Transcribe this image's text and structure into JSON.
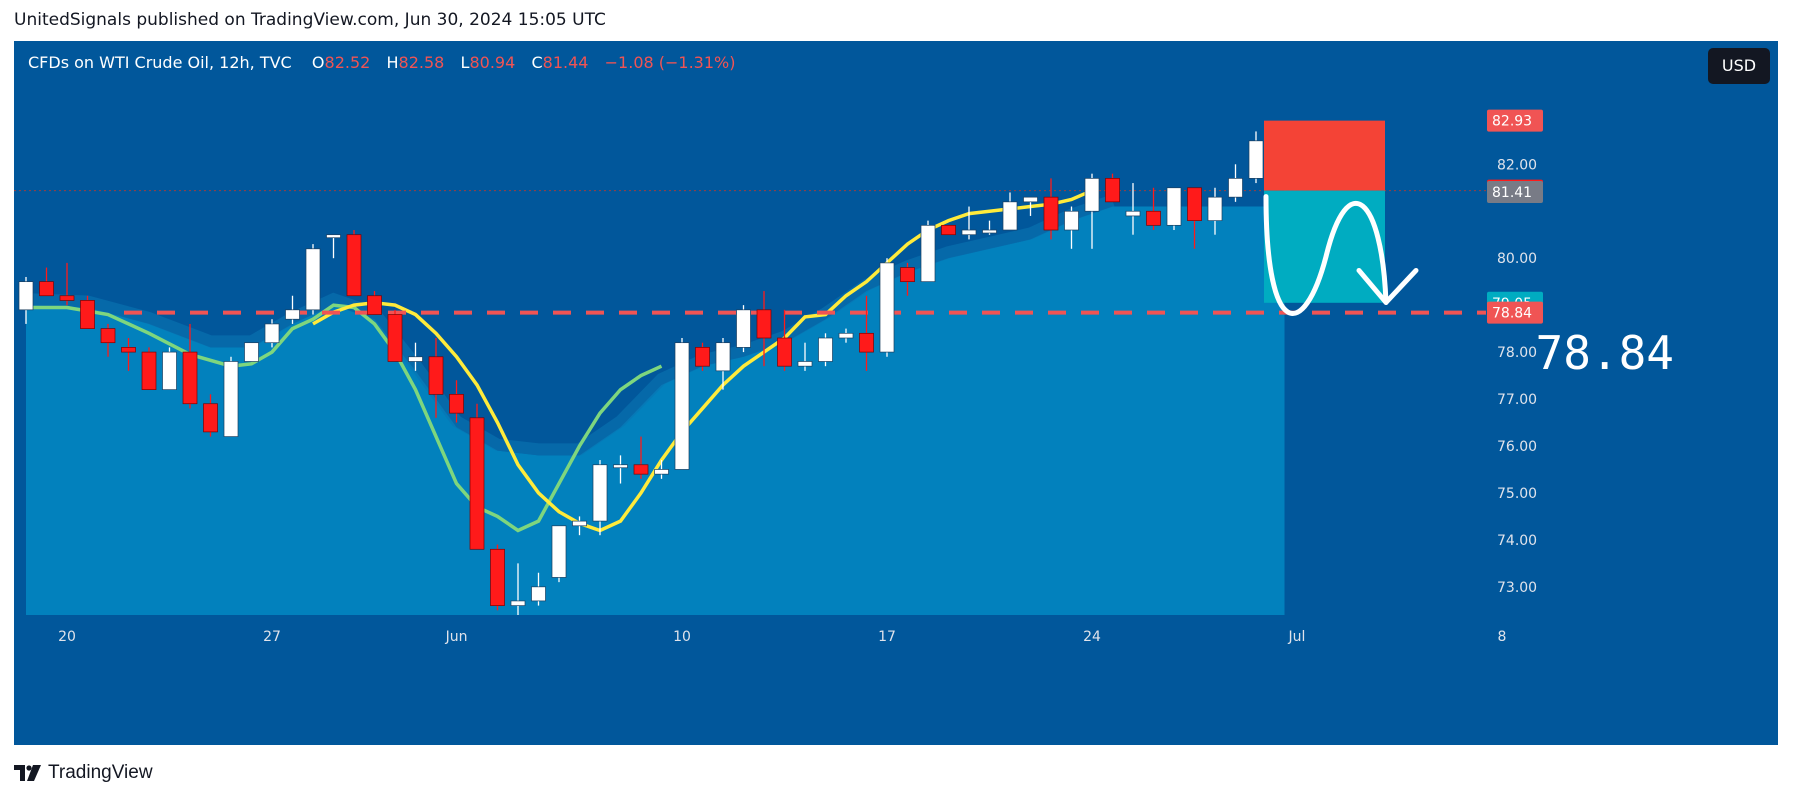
{
  "header": {
    "publish_text": "UnitedSignals published on TradingView.com, Jun 30, 2024 15:05 UTC"
  },
  "legend": {
    "symbol": "CFDs on WTI Crude Oil, 12h, TVC",
    "o_label": "O",
    "o_val": "82.52",
    "h_label": "H",
    "h_val": "82.58",
    "l_label": "L",
    "l_val": "80.94",
    "c_label": "C",
    "c_val": "81.44",
    "change": "−1.08 (−1.31%)"
  },
  "currency": "USD",
  "footer": {
    "brand": "TradingView"
  },
  "colors": {
    "background": "#01579b",
    "shade": "#0288c3",
    "candle_up": "#ffffff",
    "candle_down": "#ff1a1a",
    "ma_yellow": "#ffeb3b",
    "ma_green": "#7ed67e",
    "stop_zone": "#f44336",
    "target_zone": "#00acc1",
    "level_line": "#f05454"
  },
  "chart_data": {
    "type": "candlestick",
    "timeframe": "12h",
    "ylim": [
      72.4,
      84.2
    ],
    "y_ticks": [
      "82.00",
      "80.00",
      "79.00",
      "78.00",
      "77.00",
      "76.00",
      "75.00",
      "74.00",
      "73.00"
    ],
    "y_ticks_values": [
      82,
      80,
      79,
      78,
      77,
      76,
      75,
      74,
      73
    ],
    "x_ticks": [
      {
        "label": "20",
        "bar": 2
      },
      {
        "label": "27",
        "bar": 12
      },
      {
        "label": "Jun",
        "bar": 21
      },
      {
        "label": "10",
        "bar": 32
      },
      {
        "label": "17",
        "bar": 42
      },
      {
        "label": "24",
        "bar": 52
      },
      {
        "label": "Jul",
        "bar": 62
      },
      {
        "label": "8",
        "bar": 72
      }
    ],
    "candles": [
      [
        78.9,
        79.6,
        78.6,
        79.5
      ],
      [
        79.5,
        79.8,
        79.2,
        79.2
      ],
      [
        79.2,
        79.9,
        79.0,
        79.1
      ],
      [
        79.1,
        79.2,
        78.5,
        78.5
      ],
      [
        78.5,
        78.6,
        77.9,
        78.2
      ],
      [
        78.1,
        78.3,
        77.6,
        78.0
      ],
      [
        78.0,
        78.1,
        77.2,
        77.2
      ],
      [
        77.2,
        78.1,
        77.2,
        78.0
      ],
      [
        78.0,
        78.6,
        76.8,
        76.9
      ],
      [
        76.9,
        77.1,
        76.2,
        76.3
      ],
      [
        76.2,
        77.9,
        76.2,
        77.8
      ],
      [
        77.8,
        78.2,
        77.8,
        78.2
      ],
      [
        78.2,
        78.7,
        78.1,
        78.6
      ],
      [
        78.7,
        79.2,
        78.6,
        78.9
      ],
      [
        78.9,
        80.3,
        78.8,
        80.2
      ],
      [
        80.5,
        80.5,
        80.0,
        80.5
      ],
      [
        80.5,
        80.6,
        79.2,
        79.2
      ],
      [
        79.2,
        79.3,
        78.8,
        78.8
      ],
      [
        78.8,
        78.9,
        77.8,
        77.8
      ],
      [
        77.8,
        78.2,
        77.6,
        77.9
      ],
      [
        77.9,
        78.3,
        76.6,
        77.1
      ],
      [
        77.1,
        77.4,
        76.5,
        76.7
      ],
      [
        76.6,
        76.9,
        73.8,
        73.8
      ],
      [
        73.8,
        73.9,
        72.5,
        72.6
      ],
      [
        72.6,
        73.5,
        72.4,
        72.7
      ],
      [
        72.7,
        73.3,
        72.6,
        73.0
      ],
      [
        73.2,
        74.3,
        73.1,
        74.3
      ],
      [
        74.3,
        74.5,
        74.1,
        74.4
      ],
      [
        74.4,
        75.7,
        74.1,
        75.6
      ],
      [
        75.6,
        75.8,
        75.2,
        75.6
      ],
      [
        75.6,
        76.2,
        75.3,
        75.4
      ],
      [
        75.4,
        75.7,
        75.3,
        75.5
      ],
      [
        75.5,
        78.3,
        75.5,
        78.2
      ],
      [
        78.1,
        78.2,
        77.6,
        77.7
      ],
      [
        77.6,
        78.3,
        77.2,
        78.2
      ],
      [
        78.1,
        79.0,
        78.0,
        78.9
      ],
      [
        78.9,
        79.3,
        77.7,
        78.3
      ],
      [
        78.3,
        78.9,
        77.6,
        77.7
      ],
      [
        77.7,
        78.2,
        77.6,
        77.8
      ],
      [
        77.8,
        78.4,
        77.7,
        78.3
      ],
      [
        78.3,
        78.5,
        78.2,
        78.4
      ],
      [
        78.4,
        79.2,
        77.6,
        78.0
      ],
      [
        78.0,
        80.0,
        77.9,
        79.9
      ],
      [
        79.8,
        79.9,
        79.2,
        79.5
      ],
      [
        79.5,
        80.8,
        79.5,
        80.7
      ],
      [
        80.7,
        80.7,
        80.5,
        80.5
      ],
      [
        80.5,
        81.1,
        80.4,
        80.6
      ],
      [
        80.6,
        80.8,
        80.5,
        80.6
      ],
      [
        80.6,
        81.4,
        80.6,
        81.2
      ],
      [
        81.2,
        81.3,
        80.9,
        81.3
      ],
      [
        81.3,
        81.7,
        80.4,
        80.6
      ],
      [
        80.6,
        81.1,
        80.2,
        81.0
      ],
      [
        81.0,
        81.8,
        80.2,
        81.7
      ],
      [
        81.7,
        81.8,
        81.2,
        81.2
      ],
      [
        80.9,
        81.6,
        80.5,
        81.0
      ],
      [
        81.0,
        81.5,
        80.6,
        80.7
      ],
      [
        80.7,
        81.5,
        80.6,
        81.5
      ],
      [
        81.5,
        81.5,
        80.2,
        80.8
      ],
      [
        80.8,
        81.5,
        80.5,
        81.3
      ],
      [
        81.3,
        82.0,
        81.2,
        81.7
      ],
      [
        81.7,
        82.7,
        81.6,
        82.5
      ],
      [
        82.52,
        82.58,
        80.94,
        81.44
      ]
    ],
    "ma_yellow": [
      {
        "bar": 14,
        "value": 78.6
      },
      {
        "bar": 15,
        "value": 78.85
      },
      {
        "bar": 16,
        "value": 79.0
      },
      {
        "bar": 17,
        "value": 79.05
      },
      {
        "bar": 18,
        "value": 79.0
      },
      {
        "bar": 19,
        "value": 78.8
      },
      {
        "bar": 20,
        "value": 78.4
      },
      {
        "bar": 21,
        "value": 77.9
      },
      {
        "bar": 22,
        "value": 77.3
      },
      {
        "bar": 23,
        "value": 76.5
      },
      {
        "bar": 24,
        "value": 75.6
      },
      {
        "bar": 25,
        "value": 75.0
      },
      {
        "bar": 26,
        "value": 74.6
      },
      {
        "bar": 27,
        "value": 74.35
      },
      {
        "bar": 28,
        "value": 74.2
      },
      {
        "bar": 29,
        "value": 74.4
      },
      {
        "bar": 30,
        "value": 75.0
      },
      {
        "bar": 31,
        "value": 75.7
      },
      {
        "bar": 32,
        "value": 76.3
      },
      {
        "bar": 33,
        "value": 76.8
      },
      {
        "bar": 34,
        "value": 77.3
      },
      {
        "bar": 35,
        "value": 77.7
      },
      {
        "bar": 36,
        "value": 78.0
      },
      {
        "bar": 37,
        "value": 78.3
      },
      {
        "bar": 38,
        "value": 78.75
      },
      {
        "bar": 39,
        "value": 78.8
      },
      {
        "bar": 40,
        "value": 79.2
      },
      {
        "bar": 41,
        "value": 79.5
      },
      {
        "bar": 42,
        "value": 79.9
      },
      {
        "bar": 43,
        "value": 80.3
      },
      {
        "bar": 44,
        "value": 80.6
      },
      {
        "bar": 45,
        "value": 80.8
      },
      {
        "bar": 46,
        "value": 80.95
      },
      {
        "bar": 47,
        "value": 81.0
      },
      {
        "bar": 48,
        "value": 81.05
      },
      {
        "bar": 49,
        "value": 81.1
      },
      {
        "bar": 50,
        "value": 81.15
      },
      {
        "bar": 51,
        "value": 81.25
      },
      {
        "bar": 52,
        "value": 81.44
      }
    ],
    "ma_green": [
      {
        "bar": 0,
        "value": 78.95
      },
      {
        "bar": 2,
        "value": 78.95
      },
      {
        "bar": 4,
        "value": 78.8
      },
      {
        "bar": 6,
        "value": 78.4
      },
      {
        "bar": 8,
        "value": 77.95
      },
      {
        "bar": 10,
        "value": 77.7
      },
      {
        "bar": 11,
        "value": 77.75
      },
      {
        "bar": 12,
        "value": 78.0
      },
      {
        "bar": 13,
        "value": 78.5
      },
      {
        "bar": 14,
        "value": 78.7
      },
      {
        "bar": 15,
        "value": 79.0
      },
      {
        "bar": 16,
        "value": 78.95
      },
      {
        "bar": 17,
        "value": 78.6
      },
      {
        "bar": 18,
        "value": 78.0
      },
      {
        "bar": 19,
        "value": 77.2
      },
      {
        "bar": 20,
        "value": 76.2
      },
      {
        "bar": 21,
        "value": 75.2
      },
      {
        "bar": 22,
        "value": 74.7
      },
      {
        "bar": 23,
        "value": 74.5
      },
      {
        "bar": 24,
        "value": 74.2
      },
      {
        "bar": 25,
        "value": 74.4
      },
      {
        "bar": 26,
        "value": 75.2
      },
      {
        "bar": 27,
        "value": 76.0
      },
      {
        "bar": 28,
        "value": 76.7
      },
      {
        "bar": 29,
        "value": 77.2
      },
      {
        "bar": 30,
        "value": 77.5
      },
      {
        "bar": 31,
        "value": 77.7
      }
    ],
    "shade_top": [
      {
        "bar": 0,
        "value": 79.0
      },
      {
        "bar": 3,
        "value": 78.95
      },
      {
        "bar": 6,
        "value": 78.6
      },
      {
        "bar": 9,
        "value": 78.1
      },
      {
        "bar": 11,
        "value": 78.1
      },
      {
        "bar": 13,
        "value": 78.6
      },
      {
        "bar": 15,
        "value": 79.0
      },
      {
        "bar": 17,
        "value": 78.7
      },
      {
        "bar": 19,
        "value": 77.6
      },
      {
        "bar": 21,
        "value": 76.4
      },
      {
        "bar": 23,
        "value": 75.9
      },
      {
        "bar": 25,
        "value": 75.8
      },
      {
        "bar": 27,
        "value": 75.8
      },
      {
        "bar": 29,
        "value": 76.4
      },
      {
        "bar": 31,
        "value": 77.3
      },
      {
        "bar": 33,
        "value": 77.7
      },
      {
        "bar": 35,
        "value": 77.9
      },
      {
        "bar": 37,
        "value": 78.2
      },
      {
        "bar": 39,
        "value": 78.7
      },
      {
        "bar": 41,
        "value": 79.3
      },
      {
        "bar": 43,
        "value": 79.7
      },
      {
        "bar": 45,
        "value": 80.0
      },
      {
        "bar": 47,
        "value": 80.2
      },
      {
        "bar": 49,
        "value": 80.4
      },
      {
        "bar": 51,
        "value": 80.8
      },
      {
        "bar": 53,
        "value": 81.1
      }
    ],
    "last_bar_index": 61,
    "last_price": "81.44",
    "level_price": "78.84",
    "level_label": "78.84",
    "tp_label": "79.05",
    "sl_label": "82.93",
    "mid_label": "81.41",
    "short_position": {
      "entry": 81.44,
      "stop": 82.93,
      "target": 79.05
    },
    "right_axis_labels": [
      {
        "text": "82.93",
        "value": 82.93,
        "color": "#f05454"
      },
      {
        "text": "81.44",
        "value": 81.44,
        "color": "#ff1a1a"
      },
      {
        "text": "81.41",
        "value": 81.41,
        "color": "#787b86"
      },
      {
        "text": "79.05",
        "value": 79.05,
        "color": "#00acc1"
      },
      {
        "text": "78.84",
        "value": 78.84,
        "color": "#f05454"
      }
    ]
  }
}
